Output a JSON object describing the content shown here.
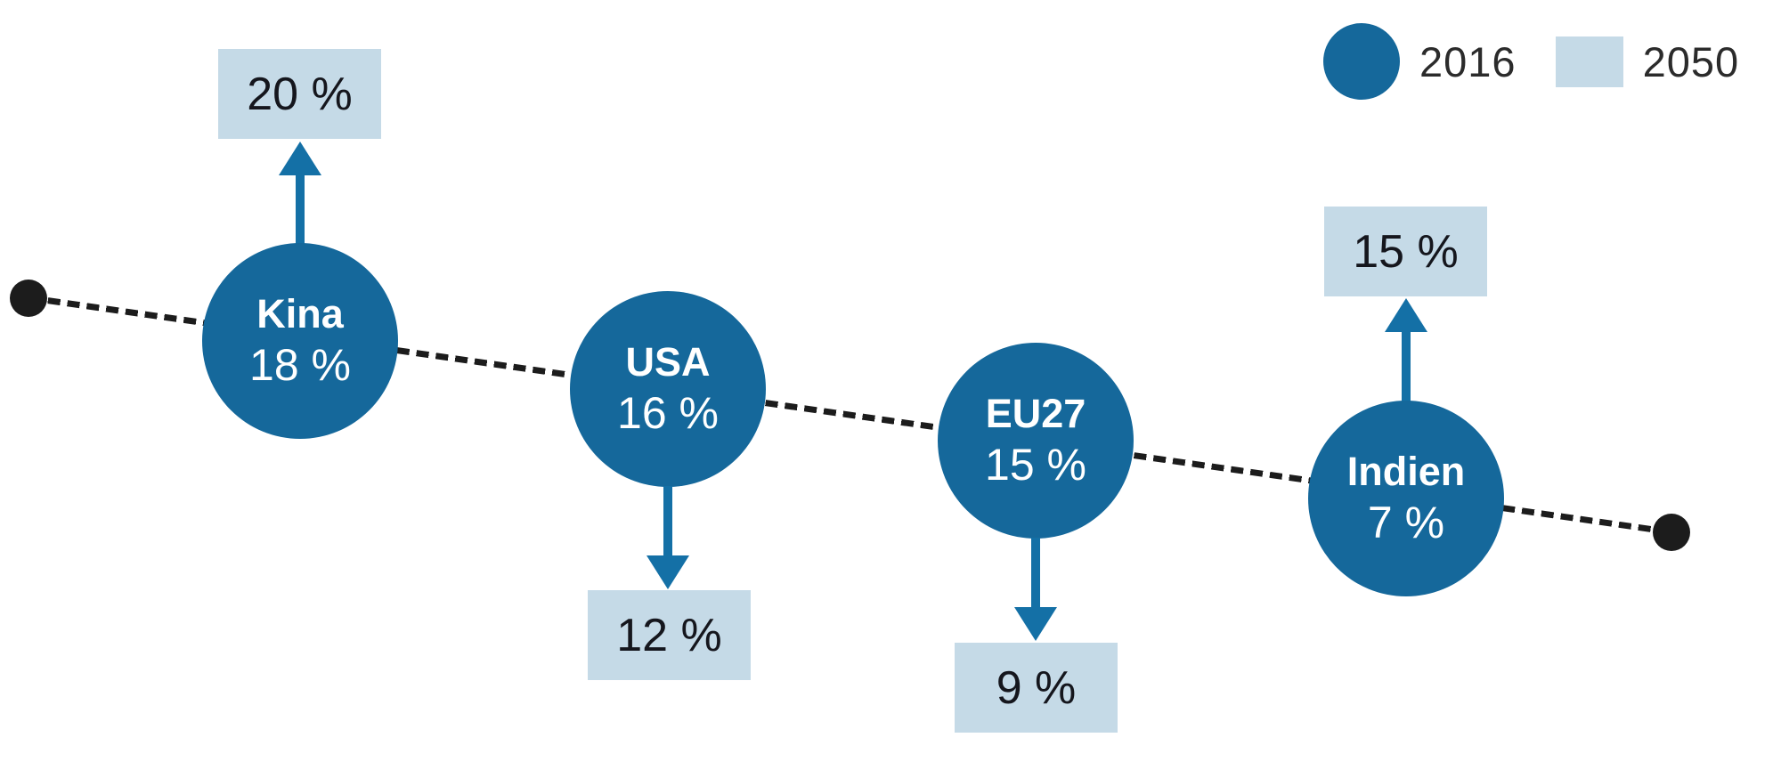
{
  "legend": {
    "items": [
      {
        "label": "2016",
        "swatch": "circle",
        "color": "#15689b"
      },
      {
        "label": "2050",
        "swatch": "square",
        "color": "#c5dae7"
      }
    ]
  },
  "colors": {
    "bubble_2016": "#15689b",
    "box_2050": "#c5dae7",
    "arrow": "#1470a6",
    "dashed_line": "#1c1c1c",
    "bubble_text": "#ffffff",
    "box_text": "#15161d",
    "legend_text": "#2b2b2b",
    "background": "#ffffff"
  },
  "chart_data": {
    "type": "scatter",
    "subtype": "bubble-comparison-infographic",
    "title": "",
    "categories": [
      "Kina",
      "USA",
      "EU27",
      "Indien"
    ],
    "series": [
      {
        "name": "2016",
        "marker": "dark-blue-circle",
        "values": [
          18,
          16,
          15,
          7
        ]
      },
      {
        "name": "2050",
        "marker": "light-blue-box",
        "values": [
          20,
          12,
          9,
          15
        ]
      }
    ],
    "points": [
      {
        "name": "Kina",
        "value_2016": 18,
        "value_2016_label": "18 %",
        "value_2050": 20,
        "value_2050_label": "20 %",
        "trend": "up"
      },
      {
        "name": "USA",
        "value_2016": 16,
        "value_2016_label": "16 %",
        "value_2050": 12,
        "value_2050_label": "12 %",
        "trend": "down"
      },
      {
        "name": "EU27",
        "value_2016": 15,
        "value_2016_label": "15 %",
        "value_2050": 9,
        "value_2050_label": "9 %",
        "trend": "down"
      },
      {
        "name": "Indien",
        "value_2016": 7,
        "value_2016_label": "7 %",
        "value_2050": 15,
        "value_2050_label": "15 %",
        "trend": "up"
      }
    ],
    "layout_hints": {
      "legend_position": "top-right",
      "baseline": "black dashed diagonal line sloping down to the right with filled round endpoints",
      "bubbles_sit_on_baseline": true,
      "grid": false
    }
  }
}
